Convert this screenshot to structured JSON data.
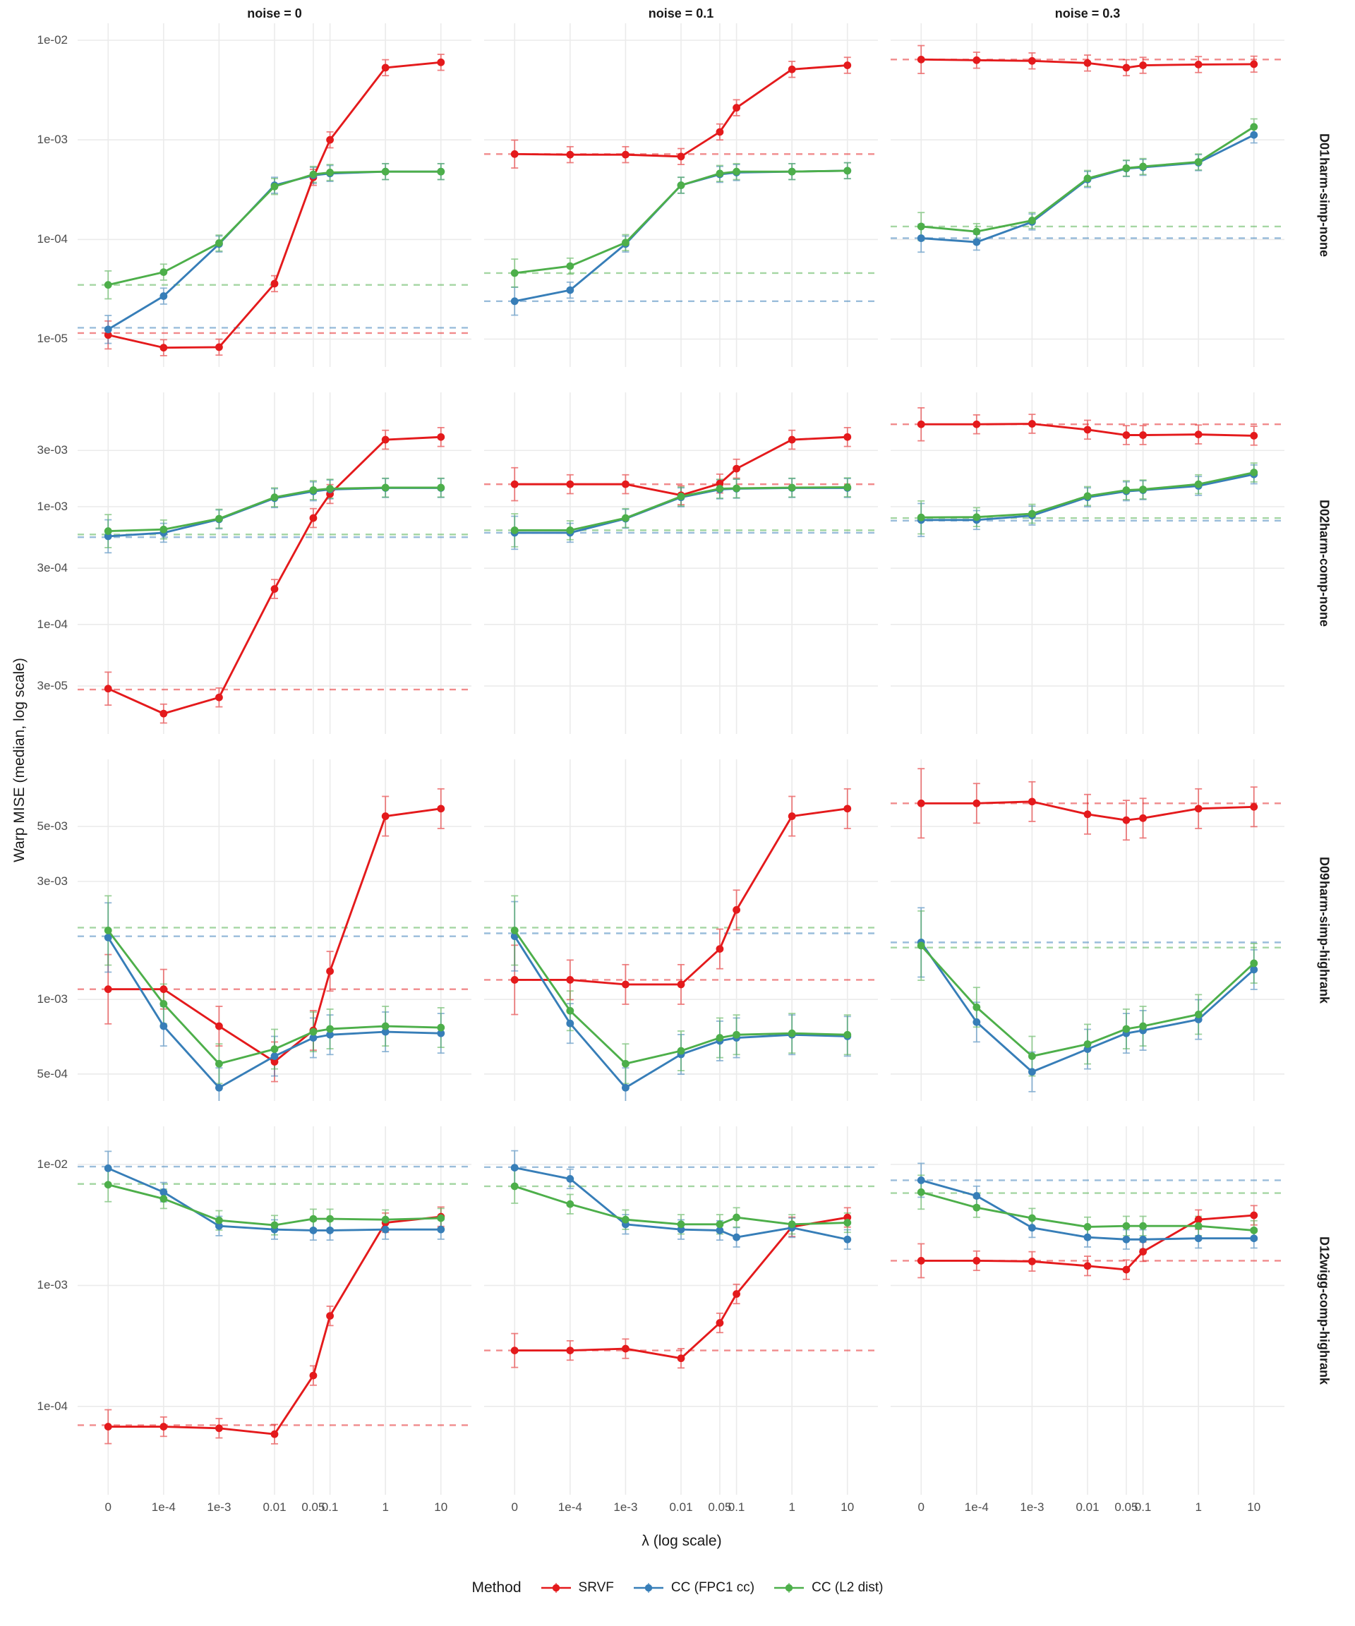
{
  "chart_data": {
    "type": "line",
    "ylabel": "Warp MISE (median, log scale)",
    "x": {
      "label": "λ (log scale)",
      "ticks": [
        "0",
        "1e-4",
        "1e-3",
        "0.01",
        "0.05",
        "0.1",
        "1",
        "10"
      ],
      "log_positions": [
        -5,
        -4,
        -3,
        -2,
        -1.30103,
        -1,
        0,
        1
      ],
      "log_range": [
        -5.55,
        1.55
      ]
    },
    "grid": "major-on-light-gray",
    "series_meta": [
      {
        "name": "SRVF",
        "color": "#E41A1C"
      },
      {
        "name": "CC (FPC1 cc)",
        "color": "#377EB8"
      },
      {
        "name": "CC (L2 dist)",
        "color": "#4DAF4A"
      }
    ],
    "cols": [
      {
        "label": "noise = 0"
      },
      {
        "label": "noise = 0.1"
      },
      {
        "label": "noise = 0.3"
      }
    ],
    "rows": [
      {
        "id": "D01",
        "subtitle": "harm-simp-none",
        "ylim_log": [
          -1.83,
          -5.28
        ],
        "yticks": [
          {
            "v": 0.01,
            "label": "1e-02"
          },
          {
            "v": 0.001,
            "label": "1e-03"
          },
          {
            "v": 0.0001,
            "label": "1e-04"
          },
          {
            "v": 1e-05,
            "label": "1e-05"
          }
        ],
        "panels": [
          {
            "series": [
              {
                "values": [
                  1.1e-05,
                  8.2e-06,
                  8.3e-06,
                  3.6e-05,
                  0.00042,
                  0.001,
                  0.0053,
                  0.006
                ],
                "dashed": 1.15e-05
              },
              {
                "values": [
                  1.25e-05,
                  2.7e-05,
                  9e-05,
                  0.00035,
                  0.00044,
                  0.00046,
                  0.00048,
                  0.00048
                ],
                "dashed": 1.3e-05
              },
              {
                "values": [
                  3.5e-05,
                  4.7e-05,
                  9.2e-05,
                  0.00034,
                  0.00045,
                  0.00047,
                  0.00048,
                  0.00048
                ],
                "dashed": 3.5e-05
              }
            ]
          },
          {
            "series": [
              {
                "values": [
                  0.00072,
                  0.00071,
                  0.00071,
                  0.00068,
                  0.0012,
                  0.0021,
                  0.0051,
                  0.0056
                ],
                "dashed": 0.00072
              },
              {
                "values": [
                  2.4e-05,
                  3.1e-05,
                  9e-05,
                  0.00035,
                  0.00045,
                  0.00047,
                  0.00048,
                  0.00049
                ],
                "dashed": 2.4e-05
              },
              {
                "values": [
                  4.6e-05,
                  5.4e-05,
                  9.3e-05,
                  0.00035,
                  0.00046,
                  0.00048,
                  0.00048,
                  0.00049
                ],
                "dashed": 4.6e-05
              }
            ]
          },
          {
            "series": [
              {
                "values": [
                  0.0064,
                  0.0063,
                  0.0062,
                  0.0059,
                  0.0053,
                  0.0056,
                  0.0057,
                  0.00575
                ],
                "dashed": 0.0064
              },
              {
                "values": [
                  0.000103,
                  9.4e-05,
                  0.00015,
                  0.0004,
                  0.000515,
                  0.00053,
                  0.00059,
                  0.00112
                ],
                "dashed": 0.000103
              },
              {
                "values": [
                  0.000135,
                  0.00012,
                  0.000155,
                  0.00041,
                  0.00052,
                  0.00054,
                  0.0006,
                  0.00135
                ],
                "dashed": 0.000135
              }
            ]
          }
        ]
      },
      {
        "id": "D02",
        "subtitle": "harm-comp-none",
        "ylim_log": [
          -2.03,
          -4.93
        ],
        "yticks": [
          {
            "v": 0.003,
            "label": "3e-03"
          },
          {
            "v": 0.001,
            "label": "1e-03"
          },
          {
            "v": 0.0003,
            "label": "3e-04"
          },
          {
            "v": 0.0001,
            "label": "1e-04"
          },
          {
            "v": 3e-05,
            "label": "3e-05"
          }
        ],
        "panels": [
          {
            "series": [
              {
                "values": [
                  2.85e-05,
                  1.75e-05,
                  2.4e-05,
                  0.0002,
                  0.0008,
                  0.00128,
                  0.0037,
                  0.0039
                ],
                "dashed": 2.8e-05
              },
              {
                "values": [
                  0.00056,
                  0.0006,
                  0.00078,
                  0.00118,
                  0.00135,
                  0.0014,
                  0.00144,
                  0.00144
                ],
                "dashed": 0.00055
              },
              {
                "values": [
                  0.00062,
                  0.00064,
                  0.00079,
                  0.0012,
                  0.00138,
                  0.00142,
                  0.00145,
                  0.00145
                ],
                "dashed": 0.00058
              }
            ]
          },
          {
            "series": [
              {
                "values": [
                  0.00155,
                  0.00155,
                  0.00155,
                  0.00125,
                  0.00157,
                  0.0021,
                  0.0037,
                  0.0039
                ],
                "dashed": 0.00155
              },
              {
                "values": [
                  0.0006,
                  0.0006,
                  0.00079,
                  0.0012,
                  0.0014,
                  0.00142,
                  0.00144,
                  0.00144
                ],
                "dashed": 0.0006
              },
              {
                "values": [
                  0.00063,
                  0.00063,
                  0.0008,
                  0.00122,
                  0.00142,
                  0.00143,
                  0.00145,
                  0.00146
                ],
                "dashed": 0.00063
              }
            ]
          },
          {
            "series": [
              {
                "values": [
                  0.005,
                  0.005,
                  0.00505,
                  0.0045,
                  0.00405,
                  0.00405,
                  0.0041,
                  0.004
                ],
                "dashed": 0.005
              },
              {
                "values": [
                  0.00077,
                  0.00077,
                  0.00084,
                  0.0012,
                  0.00135,
                  0.00138,
                  0.0015,
                  0.00188
                ],
                "dashed": 0.00076
              },
              {
                "values": [
                  0.00081,
                  0.000815,
                  0.00087,
                  0.00123,
                  0.00138,
                  0.0014,
                  0.00155,
                  0.00195
                ],
                "dashed": 0.0008
              }
            ]
          }
        ]
      },
      {
        "id": "D09",
        "subtitle": "harm-simp-highrank",
        "ylim_log": [
          -2.03,
          -3.41
        ],
        "yticks": [
          {
            "v": 0.005,
            "label": "5e-03"
          },
          {
            "v": 0.003,
            "label": "3e-03"
          },
          {
            "v": 0.001,
            "label": "1e-03"
          },
          {
            "v": 0.0005,
            "label": "5e-04"
          }
        ],
        "panels": [
          {
            "series": [
              {
                "values": [
                  0.0011,
                  0.0011,
                  0.00078,
                  0.00056,
                  0.00075,
                  0.0013,
                  0.0055,
                  0.0059
                ],
                "dashed": 0.0011
              },
              {
                "values": [
                  0.00178,
                  0.00078,
                  0.00044,
                  0.00059,
                  0.0007,
                  0.00072,
                  0.00074,
                  0.00073
                ],
                "dashed": 0.0018
              },
              {
                "values": [
                  0.0019,
                  0.00096,
                  0.00055,
                  0.00063,
                  0.00074,
                  0.00076,
                  0.00078,
                  0.00077
                ],
                "dashed": 0.00195
              }
            ]
          },
          {
            "series": [
              {
                "values": [
                  0.0012,
                  0.0012,
                  0.00115,
                  0.00115,
                  0.0016,
                  0.0023,
                  0.0055,
                  0.0059
                ],
                "dashed": 0.0012
              },
              {
                "values": [
                  0.0018,
                  0.0008,
                  0.00044,
                  0.0006,
                  0.00068,
                  0.0007,
                  0.00072,
                  0.00071
                ],
                "dashed": 0.00185
              },
              {
                "values": [
                  0.0019,
                  0.0009,
                  0.00055,
                  0.00062,
                  0.0007,
                  0.00072,
                  0.00073,
                  0.00072
                ],
                "dashed": 0.00195
              }
            ]
          },
          {
            "series": [
              {
                "values": [
                  0.0062,
                  0.0062,
                  0.0063,
                  0.0056,
                  0.0053,
                  0.0054,
                  0.0059,
                  0.006
                ],
                "dashed": 0.0062
              },
              {
                "values": [
                  0.0017,
                  0.00081,
                  0.00051,
                  0.00063,
                  0.00073,
                  0.00075,
                  0.00083,
                  0.00132
                ],
                "dashed": 0.0017
              },
              {
                "values": [
                  0.00165,
                  0.00093,
                  0.00059,
                  0.00066,
                  0.00076,
                  0.00078,
                  0.00087,
                  0.0014
                ],
                "dashed": 0.00162
              }
            ]
          }
        ]
      },
      {
        "id": "D12",
        "subtitle": "wigg-comp-highrank",
        "ylim_log": [
          -1.685,
          -4.73
        ],
        "yticks": [
          {
            "v": 0.01,
            "label": "1e-02"
          },
          {
            "v": 0.001,
            "label": "1e-03"
          },
          {
            "v": 0.0001,
            "label": "1e-04"
          }
        ],
        "panels": [
          {
            "series": [
              {
                "values": [
                  6.8e-05,
                  6.8e-05,
                  6.6e-05,
                  5.9e-05,
                  0.00018,
                  0.00056,
                  0.0033,
                  0.0037
                ],
                "dashed": 7e-05
              },
              {
                "values": [
                  0.0093,
                  0.0059,
                  0.0031,
                  0.0029,
                  0.00285,
                  0.00285,
                  0.0029,
                  0.0029
                ],
                "dashed": 0.0096
              },
              {
                "values": [
                  0.0068,
                  0.0052,
                  0.00345,
                  0.00315,
                  0.00355,
                  0.00355,
                  0.0035,
                  0.0036
                ],
                "dashed": 0.0069
              }
            ]
          },
          {
            "series": [
              {
                "values": [
                  0.00029,
                  0.00029,
                  0.0003,
                  0.00025,
                  0.00049,
                  0.00085,
                  0.00305,
                  0.00365
                ],
                "dashed": 0.00029
              },
              {
                "values": [
                  0.0094,
                  0.0076,
                  0.0032,
                  0.0029,
                  0.00285,
                  0.0025,
                  0.003,
                  0.0024
                ],
                "dashed": 0.0095
              },
              {
                "values": [
                  0.0066,
                  0.0047,
                  0.0035,
                  0.0032,
                  0.0032,
                  0.00365,
                  0.0032,
                  0.0033
                ],
                "dashed": 0.0066
              }
            ]
          },
          {
            "series": [
              {
                "values": [
                  0.0016,
                  0.0016,
                  0.00158,
                  0.00145,
                  0.00135,
                  0.0019,
                  0.0035,
                  0.0038
                ],
                "dashed": 0.0016
              },
              {
                "values": [
                  0.0074,
                  0.0055,
                  0.003,
                  0.0025,
                  0.0024,
                  0.0024,
                  0.00245,
                  0.00245
                ],
                "dashed": 0.0074
              },
              {
                "values": [
                  0.0059,
                  0.0044,
                  0.0036,
                  0.00305,
                  0.0031,
                  0.0031,
                  0.0031,
                  0.00285
                ],
                "dashed": 0.0058
              }
            ]
          }
        ]
      }
    ],
    "legend": {
      "title": "Method"
    },
    "style": {
      "gridline_color": "#ebebeb",
      "tick_text_color": "#4d4d4d",
      "errorbar_halfwidth_decades": 0.08,
      "errorbar_halfwidth_decades_first_point": 0.14
    }
  }
}
